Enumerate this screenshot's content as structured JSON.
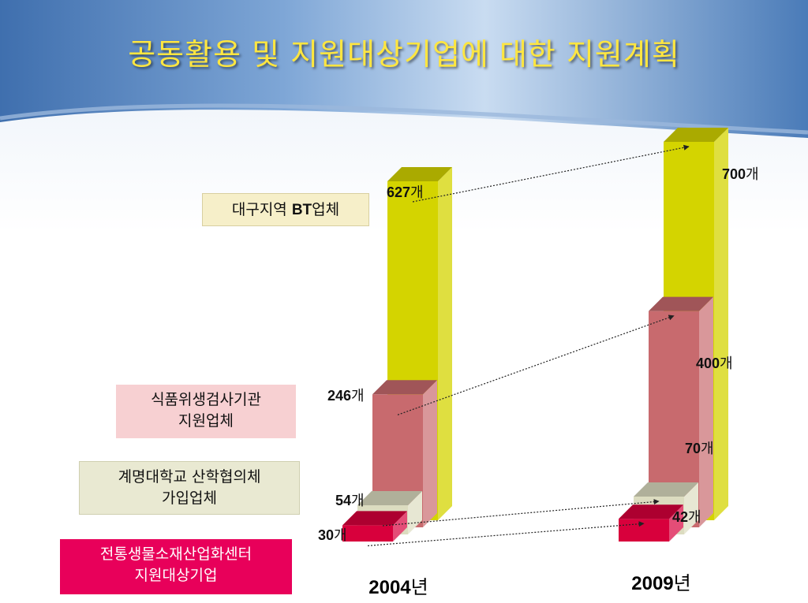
{
  "title": "공동활용 및 지원대상기업에 대한 지원계획",
  "legend": {
    "bt_prefix": "대구지역 ",
    "bt_bold": "BT",
    "bt_suffix": "업체",
    "food_line1": "식품위생검사기관",
    "food_line2": "지원업체",
    "univ_line1": "계명대학교 산학협의체",
    "univ_line2": "가입업체",
    "center_line1": "전통생물소재산업화센터",
    "center_line2": "지원대상기업"
  },
  "colors": {
    "bt": "#d4d400",
    "food": "#c86a6e",
    "univ": "#dcdcc0",
    "center": "#d8003c"
  },
  "chart_data": {
    "type": "bar",
    "categories": [
      "2004년",
      "2009년"
    ],
    "unit": "개",
    "series": [
      {
        "name": "대구지역 BT업체",
        "values": [
          627,
          700
        ],
        "labels": [
          "627개",
          "700개"
        ]
      },
      {
        "name": "식품위생검사기관 지원업체",
        "values": [
          246,
          400
        ],
        "labels": [
          "246개",
          "400개"
        ]
      },
      {
        "name": "계명대학교 산학협의체 가입업체",
        "values": [
          54,
          70
        ],
        "labels": [
          "54개",
          "70개"
        ]
      },
      {
        "name": "전통생물소재산업화센터 지원대상기업",
        "values": [
          30,
          42
        ],
        "labels": [
          "30개",
          "42개"
        ]
      }
    ]
  }
}
